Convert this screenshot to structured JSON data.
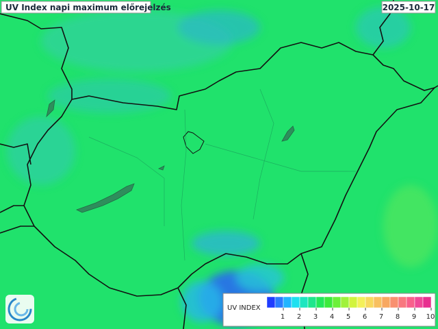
{
  "header": {
    "title": "UV Index napi maximum előrejelzés",
    "date": "2025-10-17"
  },
  "legend": {
    "title": "UV INDEX",
    "ticks": [
      1,
      2,
      3,
      4,
      5,
      6,
      7,
      8,
      9,
      10
    ],
    "colors": [
      "#1f3cff",
      "#2a7bff",
      "#21b4ff",
      "#1ee0f0",
      "#1ee6c0",
      "#1ee68c",
      "#22e85a",
      "#3cea3c",
      "#6cf03a",
      "#a0f23c",
      "#d2f43e",
      "#f4f05a",
      "#f8d85e",
      "#f8c060",
      "#f8a860",
      "#f89070",
      "#f87880",
      "#f8608c",
      "#f04898",
      "#e83090"
    ]
  }
}
